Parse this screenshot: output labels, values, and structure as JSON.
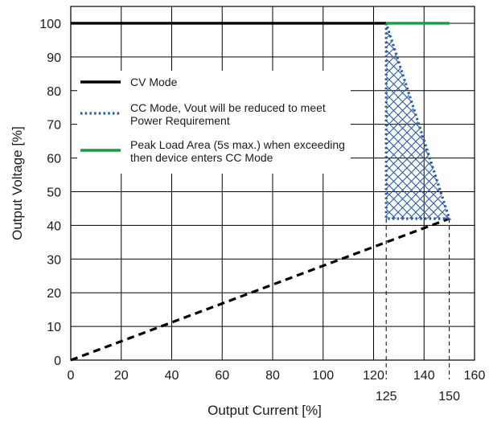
{
  "chart_data": {
    "type": "line",
    "xlabel": "Output Current [%]",
    "ylabel": "Output Voltage  [%]",
    "xlim": [
      0,
      160
    ],
    "ylim": [
      0,
      105
    ],
    "x_ticks": [
      0,
      20,
      40,
      60,
      80,
      100,
      120,
      140,
      160
    ],
    "y_ticks": [
      0,
      10,
      20,
      30,
      40,
      50,
      60,
      70,
      80,
      90,
      100
    ],
    "x_markers": [
      125,
      150
    ],
    "grid": true,
    "legend_position": "upper-left",
    "colors": {
      "cv": "#000000",
      "cc": "#2a5aa0",
      "peak": "#1a9a46",
      "hatch": "#2a5aa0"
    },
    "series": [
      {
        "name": "CV Mode",
        "style": "solid",
        "color": "#000000",
        "points": [
          [
            0,
            100
          ],
          [
            125,
            100
          ]
        ]
      },
      {
        "name": "CC Mode, Vout will be reduced to meet Power Requirement",
        "style": "dotted",
        "color": "#2a5aa0",
        "points": [
          [
            125,
            100
          ],
          [
            125,
            42
          ],
          [
            150,
            42
          ],
          [
            125,
            100
          ]
        ]
      },
      {
        "name": "Peak Load Area (5s max.) when exceeding then device enters CC Mode",
        "style": "solid",
        "color": "#1a9a46",
        "points": [
          [
            125,
            100
          ],
          [
            150,
            100
          ]
        ]
      }
    ],
    "unlabeled_lines": [
      {
        "style": "dashed",
        "color": "#000000",
        "points": [
          [
            0,
            0
          ],
          [
            150,
            42
          ]
        ]
      }
    ],
    "shaded_regions": [
      {
        "pattern": "crosshatch",
        "color": "#2a5aa0",
        "polygon": [
          [
            125,
            100
          ],
          [
            125,
            42
          ],
          [
            150,
            42
          ]
        ]
      }
    ],
    "legend": [
      {
        "lines": [
          "CV Mode"
        ]
      },
      {
        "lines": [
          "CC Mode, Vout will be reduced to meet",
          "Power Requirement"
        ]
      },
      {
        "lines": [
          "Peak Load Area (5s max.) when exceeding",
          "then device enters CC Mode"
        ]
      }
    ]
  }
}
